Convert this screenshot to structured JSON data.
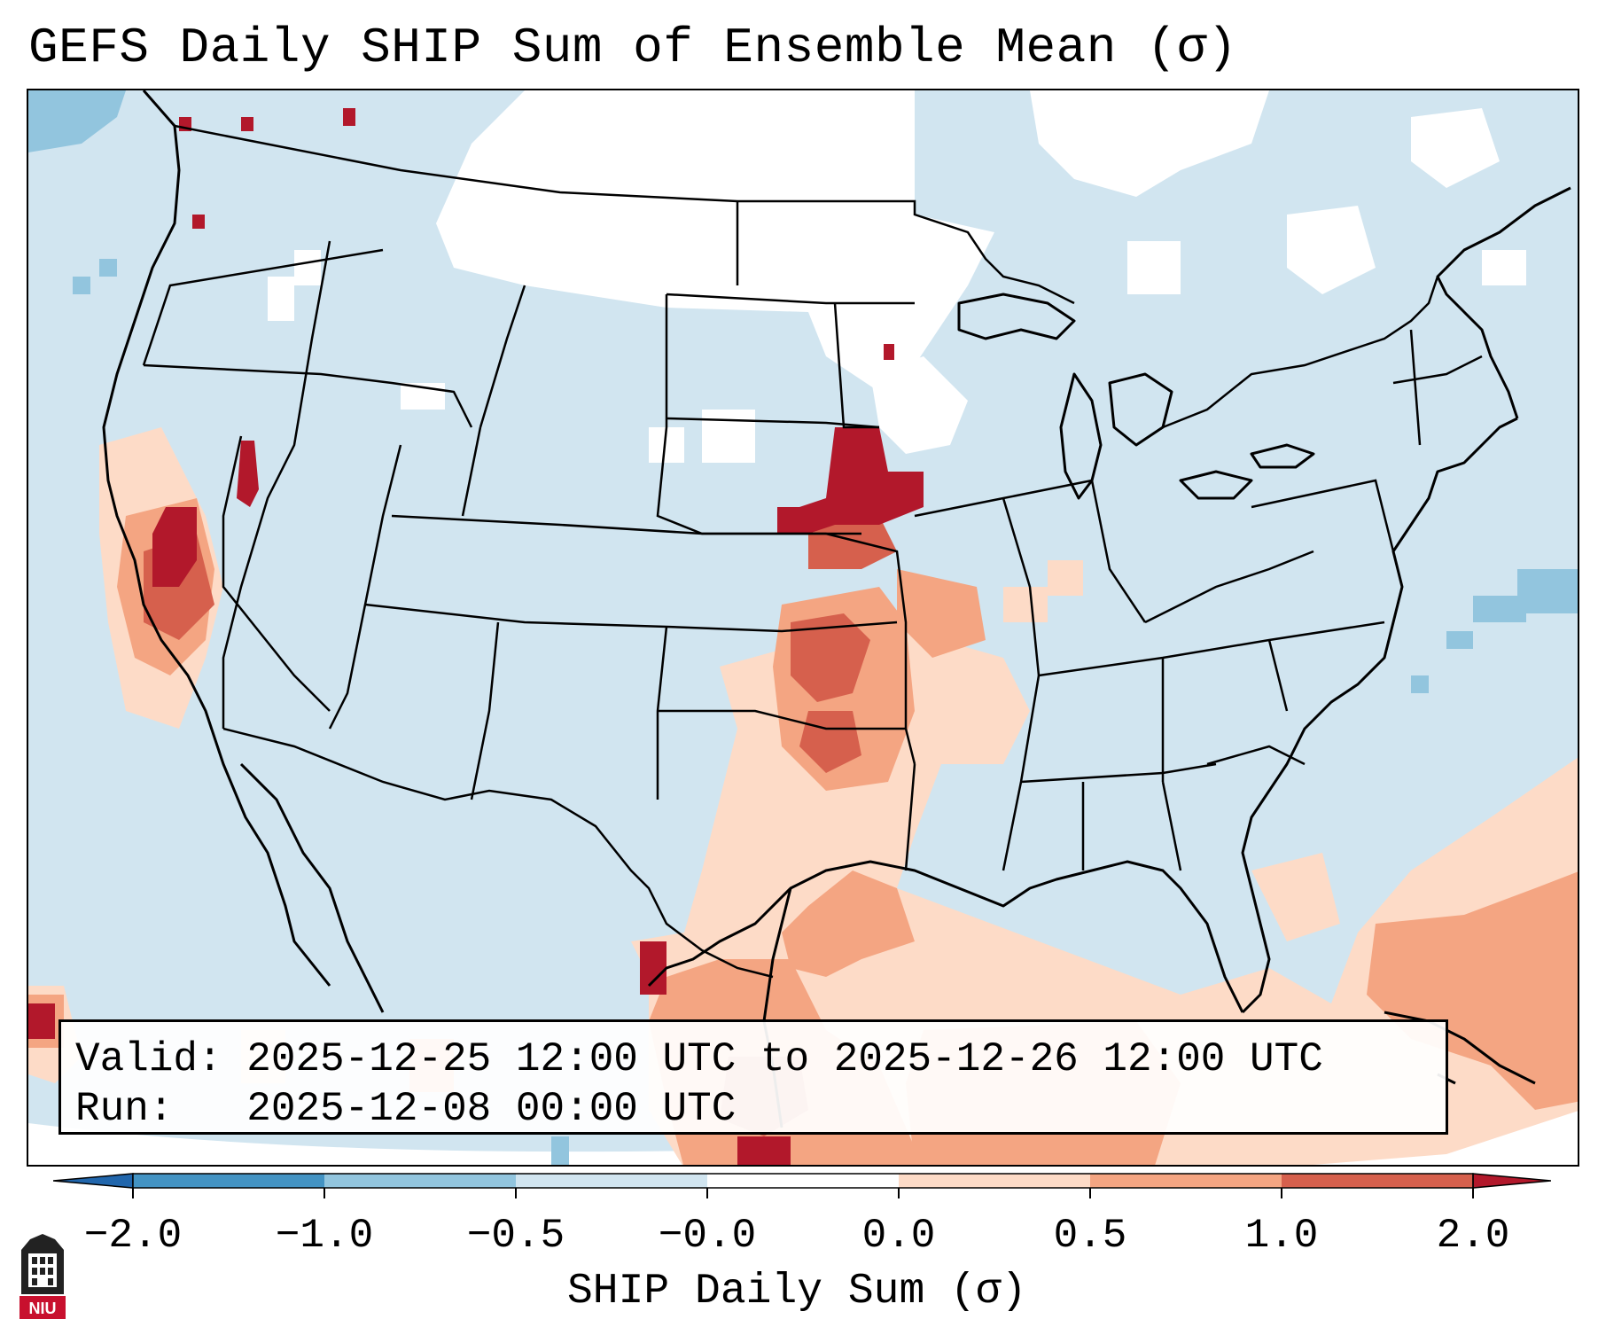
{
  "title": "GEFS Daily SHIP Sum of Ensemble Mean (σ)",
  "info": {
    "valid_line": "Valid: 2025-12-25 12:00 UTC to 2025-12-26 12:00 UTC",
    "run_line": "Run:   2025-12-08 00:00 UTC"
  },
  "colorbar": {
    "label": "SHIP Daily Sum (σ)",
    "ticks": [
      "−2.0",
      "−1.0",
      "−0.5",
      "−0.0",
      "0.0",
      "0.5",
      "1.0",
      "2.0"
    ],
    "bins": [
      {
        "range": "< -2.0",
        "color": "#2166ac"
      },
      {
        "range": "-2.0 to -1.0",
        "color": "#4393c3"
      },
      {
        "range": "-1.0 to -0.5",
        "color": "#92c5de"
      },
      {
        "range": "-0.5 to -0.0",
        "color": "#d1e5f0"
      },
      {
        "range": "-0.0 to 0.0",
        "color": "#ffffff"
      },
      {
        "range": "0.0 to 0.5",
        "color": "#fddbc7"
      },
      {
        "range": "0.5 to 1.0",
        "color": "#f4a582"
      },
      {
        "range": "1.0 to 2.0",
        "color": "#d6604d"
      },
      {
        "range": "> 2.0",
        "color": "#b2182b"
      }
    ]
  },
  "logo": {
    "text": "NIU",
    "icon": "niu-castle-logo"
  }
}
